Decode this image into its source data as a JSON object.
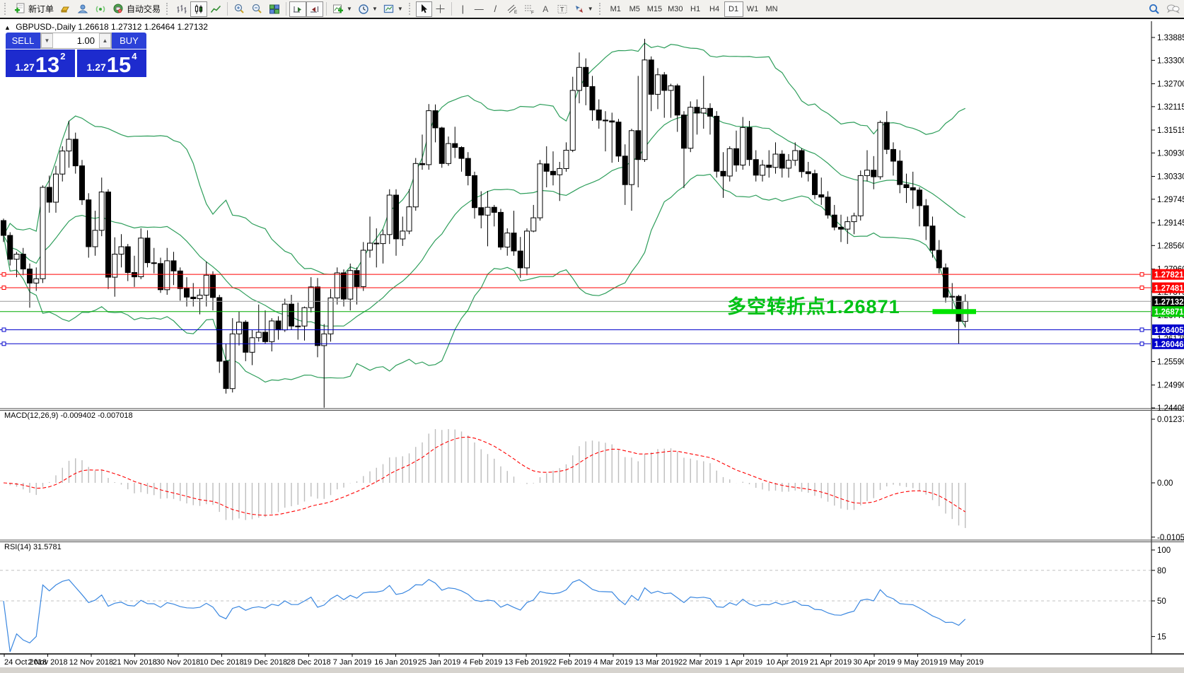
{
  "toolbar": {
    "new_order_label": "新订单",
    "autotrading_label": "自动交易",
    "timeframes": [
      "M1",
      "M5",
      "M15",
      "M30",
      "H1",
      "H4",
      "D1",
      "W1",
      "MN"
    ],
    "active_timeframe": "D1"
  },
  "chart_header": {
    "collapse_glyph": "▲",
    "symbol": "GBPUSD-,Daily",
    "open": "1.26618",
    "high": "1.27312",
    "low": "1.26464",
    "close": "1.27132"
  },
  "trade_panel": {
    "sell_label": "SELL",
    "buy_label": "BUY",
    "volume": "1.00",
    "spin_down": "▼",
    "spin_up": "▲",
    "sell_small": "1.27",
    "sell_big": "13",
    "sell_sup": "2",
    "buy_small": "1.27",
    "buy_big": "15",
    "buy_sup": "4"
  },
  "annotation": {
    "text": "多空转折点1.26871",
    "color": "#00c216"
  },
  "indicators": {
    "macd_label": "MACD(12,26,9)",
    "macd_value": "-0.009402",
    "macd_signal_value": "-0.007018",
    "rsi_label": "RSI(14)",
    "rsi_value": "31.5781"
  },
  "axes": {
    "price_ticks": [
      "1.33885",
      "1.33300",
      "1.32700",
      "1.32115",
      "1.31515",
      "1.30930",
      "1.30330",
      "1.29745",
      "1.29145",
      "1.28560",
      "1.27960",
      "1.27375",
      "1.26775",
      "1.26175",
      "1.25590",
      "1.24990",
      "1.24405"
    ],
    "macd_ticks": [
      "0.01237",
      "0.00",
      "-0.010553"
    ],
    "rsi_ticks": [
      "100",
      "80",
      "50",
      "15"
    ],
    "rsi_dashed_levels": [
      80,
      50
    ],
    "dates": [
      "24 Oct 2018",
      "2 Nov 2018",
      "12 Nov 2018",
      "21 Nov 2018",
      "30 Nov 2018",
      "10 Dec 2018",
      "19 Dec 2018",
      "28 Dec 2018",
      "7 Jan 2019",
      "16 Jan 2019",
      "25 Jan 2019",
      "4 Feb 2019",
      "13 Feb 2019",
      "22 Feb 2019",
      "4 Mar 2019",
      "13 Mar 2019",
      "22 Mar 2019",
      "1 Apr 2019",
      "10 Apr 2019",
      "21 Apr 2019",
      "30 Apr 2019",
      "9 May 2019",
      "19 May 2019"
    ]
  },
  "levels": [
    {
      "label": "1.27821",
      "value": 1.27821,
      "color": "#ff0000",
      "kind": "resistance",
      "markers": true
    },
    {
      "label": "1.27481",
      "value": 1.27481,
      "color": "#ff0000",
      "kind": "resistance",
      "markers": true
    },
    {
      "label": "1.27132",
      "value": 1.27132,
      "color": "#000000",
      "line_color": "#9a9a9a",
      "kind": "current-price",
      "markers": false
    },
    {
      "label": "1.26871",
      "value": 1.26871,
      "color": "#00cc00",
      "line_color": "#00aa00",
      "kind": "turning-point",
      "markers": false
    },
    {
      "label": "1.26405",
      "value": 1.26405,
      "color": "#0000cc",
      "kind": "support",
      "markers": true
    },
    {
      "label": "1.26046",
      "value": 1.26046,
      "color": "#0000cc",
      "kind": "support",
      "markers": true
    }
  ],
  "highlight_segment": {
    "from_candle": 142,
    "to_candle": 148,
    "value": 1.26871,
    "color": "#00e400"
  },
  "colors": {
    "bull": "#ffffff",
    "bear": "#000000",
    "wick": "#000000",
    "bollinger": "#2e9e5b",
    "macd_histogram": "#bdbdbd",
    "macd_signal": "#ff0000",
    "rsi_line": "#3a87e0",
    "rsi_level": "#c0c0c0",
    "axis_text": "#000000"
  },
  "chart_data": {
    "type": "candlestick",
    "symbol": "GBPUSD",
    "period": "Daily",
    "price_range": [
      1.24405,
      1.33885
    ],
    "bollinger": {
      "period": 20,
      "deviation": 2
    },
    "macd": {
      "fast": 12,
      "slow": 26,
      "signal": 9
    },
    "rsi": {
      "period": 14
    },
    "candles": [
      [
        1.292,
        1.2925,
        1.2865,
        1.2882
      ],
      [
        1.2882,
        1.289,
        1.2805,
        1.2821
      ],
      [
        1.2821,
        1.284,
        1.2775,
        1.2834
      ],
      [
        1.2834,
        1.285,
        1.278,
        1.2796
      ],
      [
        1.2796,
        1.281,
        1.2697,
        1.276
      ],
      [
        1.276,
        1.28,
        1.274,
        1.2771
      ],
      [
        1.2771,
        1.301,
        1.276,
        1.3005
      ],
      [
        1.3005,
        1.3035,
        1.294,
        1.2967
      ],
      [
        1.2967,
        1.306,
        1.294,
        1.3039
      ],
      [
        1.3039,
        1.311,
        1.302,
        1.3098
      ],
      [
        1.3098,
        1.3175,
        1.3055,
        1.3128
      ],
      [
        1.3128,
        1.3145,
        1.304,
        1.306
      ],
      [
        1.306,
        1.3075,
        1.296,
        1.2973
      ],
      [
        1.2973,
        1.299,
        1.2825,
        1.2853
      ],
      [
        1.2853,
        1.2945,
        1.283,
        1.2895
      ],
      [
        1.2895,
        1.303,
        1.288,
        1.2993
      ],
      [
        1.2993,
        1.3,
        1.2745,
        1.2775
      ],
      [
        1.2775,
        1.2877,
        1.2725,
        1.2834
      ],
      [
        1.2834,
        1.2885,
        1.28,
        1.2853
      ],
      [
        1.2853,
        1.286,
        1.2765,
        1.2787
      ],
      [
        1.2787,
        1.283,
        1.275,
        1.2776
      ],
      [
        1.2776,
        1.29,
        1.277,
        1.2875
      ],
      [
        1.2875,
        1.2895,
        1.28,
        1.2812
      ],
      [
        1.2812,
        1.285,
        1.2785,
        1.281
      ],
      [
        1.281,
        1.2825,
        1.2735,
        1.2743
      ],
      [
        1.2743,
        1.285,
        1.273,
        1.2817
      ],
      [
        1.2817,
        1.284,
        1.2755,
        1.2791
      ],
      [
        1.2791,
        1.28,
        1.2715,
        1.2746
      ],
      [
        1.2746,
        1.2775,
        1.27,
        1.2724
      ],
      [
        1.2724,
        1.276,
        1.27,
        1.272
      ],
      [
        1.272,
        1.2745,
        1.268,
        1.2729
      ],
      [
        1.2729,
        1.2815,
        1.27,
        1.278
      ],
      [
        1.278,
        1.279,
        1.269,
        1.2723
      ],
      [
        1.2723,
        1.273,
        1.253,
        1.256
      ],
      [
        1.256,
        1.2605,
        1.2477,
        1.249
      ],
      [
        1.249,
        1.267,
        1.248,
        1.263
      ],
      [
        1.263,
        1.2687,
        1.26,
        1.266
      ],
      [
        1.266,
        1.2665,
        1.256,
        1.2583
      ],
      [
        1.2583,
        1.264,
        1.255,
        1.262
      ],
      [
        1.262,
        1.2705,
        1.261,
        1.2634
      ],
      [
        1.2634,
        1.269,
        1.2605,
        1.261
      ],
      [
        1.261,
        1.267,
        1.2585,
        1.2663
      ],
      [
        1.2663,
        1.2675,
        1.2615,
        1.264
      ],
      [
        1.264,
        1.272,
        1.2635,
        1.2706
      ],
      [
        1.2706,
        1.273,
        1.264,
        1.265
      ],
      [
        1.265,
        1.271,
        1.2615,
        1.265
      ],
      [
        1.265,
        1.27,
        1.2613,
        1.2697
      ],
      [
        1.2697,
        1.2775,
        1.2685,
        1.275
      ],
      [
        1.275,
        1.2773,
        1.257,
        1.26
      ],
      [
        1.26,
        1.2655,
        1.2441,
        1.263
      ],
      [
        1.263,
        1.2745,
        1.261,
        1.2722
      ],
      [
        1.2722,
        1.28,
        1.2705,
        1.2786
      ],
      [
        1.2786,
        1.2795,
        1.27,
        1.2719
      ],
      [
        1.2719,
        1.281,
        1.269,
        1.2792
      ],
      [
        1.2792,
        1.28,
        1.2705,
        1.2751
      ],
      [
        1.2751,
        1.2865,
        1.274,
        1.2844
      ],
      [
        1.2844,
        1.293,
        1.2825,
        1.2862
      ],
      [
        1.2862,
        1.29,
        1.28,
        1.2861
      ],
      [
        1.2861,
        1.2897,
        1.281,
        1.2884
      ],
      [
        1.2884,
        1.3,
        1.286,
        1.2985
      ],
      [
        1.2985,
        1.3,
        1.283,
        1.2873
      ],
      [
        1.2873,
        1.293,
        1.2855,
        1.2893
      ],
      [
        1.2893,
        1.3,
        1.2885,
        1.2955
      ],
      [
        1.2955,
        1.308,
        1.2945,
        1.3066
      ],
      [
        1.3066,
        1.314,
        1.305,
        1.3063
      ],
      [
        1.3063,
        1.3218,
        1.305,
        1.3201
      ],
      [
        1.3201,
        1.3217,
        1.312,
        1.3157
      ],
      [
        1.3157,
        1.316,
        1.3055,
        1.3066
      ],
      [
        1.3066,
        1.3135,
        1.306,
        1.3117
      ],
      [
        1.3117,
        1.316,
        1.308,
        1.3107
      ],
      [
        1.3107,
        1.311,
        1.3045,
        1.3079
      ],
      [
        1.3079,
        1.3095,
        1.301,
        1.3035
      ],
      [
        1.3035,
        1.3045,
        1.2925,
        1.2953
      ],
      [
        1.2953,
        1.2995,
        1.29,
        1.2934
      ],
      [
        1.2934,
        1.2996,
        1.2854,
        1.2954
      ],
      [
        1.2954,
        1.296,
        1.2905,
        1.2941
      ],
      [
        1.2941,
        1.295,
        1.2845,
        1.2852
      ],
      [
        1.2852,
        1.29,
        1.283,
        1.2888
      ],
      [
        1.2888,
        1.2945,
        1.283,
        1.2842
      ],
      [
        1.2842,
        1.2878,
        1.2773,
        1.2799
      ],
      [
        1.2799,
        1.29,
        1.278,
        1.2893
      ],
      [
        1.2893,
        1.296,
        1.289,
        1.2927
      ],
      [
        1.2927,
        1.3075,
        1.292,
        1.3065
      ],
      [
        1.3065,
        1.311,
        1.3005,
        1.3046
      ],
      [
        1.3046,
        1.3097,
        1.301,
        1.3037
      ],
      [
        1.3037,
        1.307,
        1.297,
        1.3053
      ],
      [
        1.3053,
        1.312,
        1.3045,
        1.31
      ],
      [
        1.31,
        1.3288,
        1.3095,
        1.3253
      ],
      [
        1.3253,
        1.335,
        1.322,
        1.3312
      ],
      [
        1.3312,
        1.3335,
        1.3215,
        1.3263
      ],
      [
        1.3263,
        1.329,
        1.3175,
        1.3203
      ],
      [
        1.3203,
        1.323,
        1.3155,
        1.3177
      ],
      [
        1.3177,
        1.32,
        1.3097,
        1.3175
      ],
      [
        1.3175,
        1.3196,
        1.3068,
        1.3172
      ],
      [
        1.3172,
        1.318,
        1.307,
        1.3085
      ],
      [
        1.3085,
        1.3115,
        1.296,
        1.3012
      ],
      [
        1.3012,
        1.3155,
        1.2945,
        1.315
      ],
      [
        1.315,
        1.329,
        1.3005,
        1.3076
      ],
      [
        1.3076,
        1.3385,
        1.307,
        1.3331
      ],
      [
        1.3331,
        1.334,
        1.32,
        1.3243
      ],
      [
        1.3243,
        1.331,
        1.3205,
        1.3293
      ],
      [
        1.3293,
        1.33,
        1.3183,
        1.3253
      ],
      [
        1.3253,
        1.327,
        1.3183,
        1.3265
      ],
      [
        1.3265,
        1.327,
        1.3147,
        1.319
      ],
      [
        1.319,
        1.32,
        1.3003,
        1.3105
      ],
      [
        1.3105,
        1.3225,
        1.3095,
        1.321
      ],
      [
        1.321,
        1.323,
        1.314,
        1.3195
      ],
      [
        1.3195,
        1.329,
        1.3155,
        1.3207
      ],
      [
        1.3207,
        1.322,
        1.314,
        1.3187
      ],
      [
        1.3187,
        1.32,
        1.303,
        1.3046
      ],
      [
        1.3046,
        1.3095,
        1.2978,
        1.3034
      ],
      [
        1.3034,
        1.311,
        1.302,
        1.3104
      ],
      [
        1.3104,
        1.315,
        1.3045,
        1.3062
      ],
      [
        1.3062,
        1.3185,
        1.305,
        1.3158
      ],
      [
        1.3158,
        1.3175,
        1.306,
        1.3076
      ],
      [
        1.3076,
        1.31,
        1.302,
        1.3036
      ],
      [
        1.3036,
        1.3075,
        1.302,
        1.3062
      ],
      [
        1.3062,
        1.31,
        1.303,
        1.3056
      ],
      [
        1.3056,
        1.312,
        1.304,
        1.309
      ],
      [
        1.309,
        1.31,
        1.303,
        1.3054
      ],
      [
        1.3054,
        1.309,
        1.303,
        1.3074
      ],
      [
        1.3074,
        1.312,
        1.306,
        1.3099
      ],
      [
        1.3099,
        1.3105,
        1.303,
        1.3045
      ],
      [
        1.3045,
        1.307,
        1.302,
        1.304
      ],
      [
        1.304,
        1.305,
        1.2975,
        1.2986
      ],
      [
        1.2986,
        1.303,
        1.296,
        1.298
      ],
      [
        1.298,
        1.2995,
        1.2925,
        1.2934
      ],
      [
        1.2934,
        1.296,
        1.2895,
        1.2903
      ],
      [
        1.2903,
        1.2935,
        1.2865,
        1.2898
      ],
      [
        1.2898,
        1.293,
        1.286,
        1.2917
      ],
      [
        1.2917,
        1.294,
        1.2885,
        1.2932
      ],
      [
        1.2932,
        1.3048,
        1.292,
        1.3035
      ],
      [
        1.3035,
        1.31,
        1.302,
        1.3049
      ],
      [
        1.3049,
        1.3085,
        1.3,
        1.3032
      ],
      [
        1.3032,
        1.3176,
        1.3025,
        1.3171
      ],
      [
        1.3171,
        1.32,
        1.309,
        1.3102
      ],
      [
        1.3102,
        1.312,
        1.3035,
        1.3072
      ],
      [
        1.3072,
        1.31,
        1.299,
        1.3012
      ],
      [
        1.3012,
        1.304,
        1.2965,
        1.3004
      ],
      [
        1.3004,
        1.3045,
        1.295,
        1.2998
      ],
      [
        1.2998,
        1.3005,
        1.2905,
        1.2958
      ],
      [
        1.2958,
        1.2975,
        1.287,
        1.2906
      ],
      [
        1.2906,
        1.293,
        1.2825,
        1.2844
      ],
      [
        1.2844,
        1.287,
        1.2785,
        1.2799
      ],
      [
        1.2799,
        1.281,
        1.271,
        1.2724
      ],
      [
        1.2724,
        1.276,
        1.2685,
        1.2726
      ],
      [
        1.2726,
        1.273,
        1.2605,
        1.2662
      ],
      [
        1.2662,
        1.2731,
        1.2646,
        1.2713
      ]
    ]
  }
}
